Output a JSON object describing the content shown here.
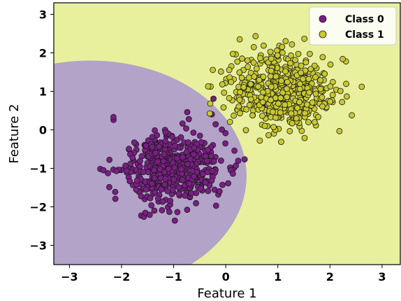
{
  "chart_data": {
    "type": "scatter",
    "title": "",
    "xlabel": "Feature 1",
    "ylabel": "Feature 2",
    "xlim": [
      -3.3,
      3.35
    ],
    "ylim": [
      -3.5,
      3.3
    ],
    "xticks": [
      -3,
      -2,
      -1,
      0,
      1,
      2,
      3
    ],
    "xtick_labels": [
      "−3",
      "−2",
      "−1",
      "0",
      "1",
      "2",
      "3"
    ],
    "yticks": [
      -3,
      -2,
      -1,
      0,
      1,
      2,
      3
    ],
    "ytick_labels": [
      "−3",
      "−2",
      "−1",
      "0",
      "1",
      "2",
      "3"
    ],
    "legend_position": "top-right",
    "grid": false,
    "background_regions": {
      "class_0_color": "#b3a3c8",
      "class_1_color": "#e8f09e"
    },
    "decision_boundary": {
      "shape": "circle",
      "center": [
        -2.6,
        -1.2
      ],
      "radius": 3.0
    },
    "series": [
      {
        "name": "Class 0",
        "color": "#7a1e84",
        "edgecolor": "#1a1a1a",
        "center": [
          -1.0,
          -1.0
        ],
        "spread": 0.5,
        "count": 500,
        "seed": 11
      },
      {
        "name": "Class 1",
        "color": "#c8c830",
        "edgecolor": "#1a1a1a",
        "center": [
          1.0,
          1.0
        ],
        "spread": 0.5,
        "count": 500,
        "seed": 29
      }
    ]
  }
}
